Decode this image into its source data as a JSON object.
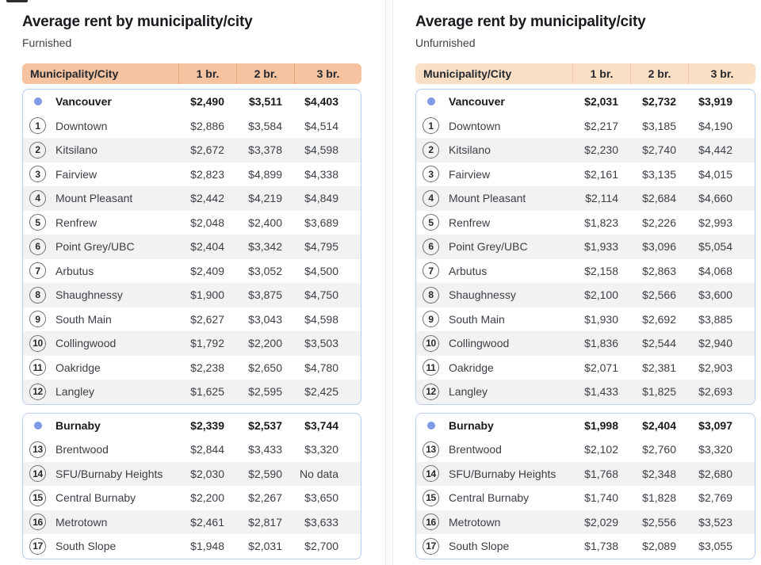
{
  "chart_data": [
    {
      "type": "table",
      "title": "Average rent by municipality/city",
      "subtitle": "Furnished",
      "columns": [
        "Municipality/City",
        "1 br.",
        "2 br.",
        "3 br."
      ],
      "sections": [
        {
          "city": {
            "name": "Vancouver",
            "values": [
              "$2,490",
              "$3,511",
              "$4,403"
            ]
          },
          "rows": [
            {
              "num": "1",
              "name": "Downtown",
              "values": [
                "$2,886",
                "$3,584",
                "$4,514"
              ]
            },
            {
              "num": "2",
              "name": "Kitsilano",
              "values": [
                "$2,672",
                "$3,378",
                "$4,598"
              ]
            },
            {
              "num": "3",
              "name": "Fairview",
              "values": [
                "$2,823",
                "$4,899",
                "$4,338"
              ]
            },
            {
              "num": "4",
              "name": "Mount Pleasant",
              "values": [
                "$2,442",
                "$4,219",
                "$4,849"
              ]
            },
            {
              "num": "5",
              "name": "Renfrew",
              "values": [
                "$2,048",
                "$2,400",
                "$3,689"
              ]
            },
            {
              "num": "6",
              "name": "Point Grey/UBC",
              "values": [
                "$2,404",
                "$3,342",
                "$4,795"
              ]
            },
            {
              "num": "7",
              "name": "Arbutus",
              "values": [
                "$2,409",
                "$3,052",
                "$4,500"
              ]
            },
            {
              "num": "8",
              "name": "Shaughnessy",
              "values": [
                "$1,900",
                "$3,875",
                "$4,750"
              ]
            },
            {
              "num": "9",
              "name": "South Main",
              "values": [
                "$2,627",
                "$3,043",
                "$4,598"
              ]
            },
            {
              "num": "10",
              "name": "Collingwood",
              "values": [
                "$1,792",
                "$2,200",
                "$3,503"
              ]
            },
            {
              "num": "11",
              "name": "Oakridge",
              "values": [
                "$2,238",
                "$2,650",
                "$4,780"
              ]
            },
            {
              "num": "12",
              "name": "Langley",
              "values": [
                "$1,625",
                "$2,595",
                "$2,425"
              ]
            }
          ]
        },
        {
          "city": {
            "name": "Burnaby",
            "values": [
              "$2,339",
              "$2,537",
              "$3,744"
            ]
          },
          "rows": [
            {
              "num": "13",
              "name": "Brentwood",
              "values": [
                "$2,844",
                "$3,433",
                "$3,320"
              ]
            },
            {
              "num": "14",
              "name": "SFU/Burnaby Heights",
              "values": [
                "$2,030",
                "$2,590",
                "No data"
              ]
            },
            {
              "num": "15",
              "name": "Central Burnaby",
              "values": [
                "$2,200",
                "$2,267",
                "$3,650"
              ]
            },
            {
              "num": "16",
              "name": "Metrotown",
              "values": [
                "$2,461",
                "$2,817",
                "$3,633"
              ]
            },
            {
              "num": "17",
              "name": "South Slope",
              "values": [
                "$1,948",
                "$2,031",
                "$2,700"
              ]
            }
          ]
        }
      ]
    },
    {
      "type": "table",
      "title": "Average rent by municipality/city",
      "subtitle": "Unfurnished",
      "columns": [
        "Municipality/City",
        "1 br.",
        "2 br.",
        "3 br."
      ],
      "sections": [
        {
          "city": {
            "name": "Vancouver",
            "values": [
              "$2,031",
              "$2,732",
              "$3,919"
            ]
          },
          "rows": [
            {
              "num": "1",
              "name": "Downtown",
              "values": [
                "$2,217",
                "$3,185",
                "$4,190"
              ]
            },
            {
              "num": "2",
              "name": "Kitsilano",
              "values": [
                "$2,230",
                "$2,740",
                "$4,442"
              ]
            },
            {
              "num": "3",
              "name": "Fairview",
              "values": [
                "$2,161",
                "$3,135",
                "$4,015"
              ]
            },
            {
              "num": "4",
              "name": "Mount Pleasant",
              "values": [
                "$2,114",
                "$2,684",
                "$4,660"
              ]
            },
            {
              "num": "5",
              "name": "Renfrew",
              "values": [
                "$1,823",
                "$2,226",
                "$2,993"
              ]
            },
            {
              "num": "6",
              "name": "Point Grey/UBC",
              "values": [
                "$1,933",
                "$3,096",
                "$5,054"
              ]
            },
            {
              "num": "7",
              "name": "Arbutus",
              "values": [
                "$2,158",
                "$2,863",
                "$4,068"
              ]
            },
            {
              "num": "8",
              "name": "Shaughnessy",
              "values": [
                "$2,100",
                "$2,566",
                "$3,600"
              ]
            },
            {
              "num": "9",
              "name": "South Main",
              "values": [
                "$1,930",
                "$2,692",
                "$3,885"
              ]
            },
            {
              "num": "10",
              "name": "Collingwood",
              "values": [
                "$1,836",
                "$2,544",
                "$2,940"
              ]
            },
            {
              "num": "11",
              "name": "Oakridge",
              "values": [
                "$2,071",
                "$2,381",
                "$2,903"
              ]
            },
            {
              "num": "12",
              "name": "Langley",
              "values": [
                "$1,433",
                "$1,825",
                "$2,693"
              ]
            }
          ]
        },
        {
          "city": {
            "name": "Burnaby",
            "values": [
              "$1,998",
              "$2,404",
              "$3,097"
            ]
          },
          "rows": [
            {
              "num": "13",
              "name": "Brentwood",
              "values": [
                "$2,102",
                "$2,760",
                "$3,320"
              ]
            },
            {
              "num": "14",
              "name": "SFU/Burnaby Heights",
              "values": [
                "$1,768",
                "$2,348",
                "$2,680"
              ]
            },
            {
              "num": "15",
              "name": "Central Burnaby",
              "values": [
                "$1,740",
                "$1,828",
                "$2,769"
              ]
            },
            {
              "num": "16",
              "name": "Metrotown",
              "values": [
                "$2,029",
                "$2,556",
                "$3,523"
              ]
            },
            {
              "num": "17",
              "name": "South Slope",
              "values": [
                "$1,738",
                "$2,089",
                "$3,055"
              ]
            }
          ]
        }
      ]
    }
  ],
  "colors": {
    "header_bg_furnished": "#f5c3a0",
    "header_sep_furnished": "#e2a87e",
    "header_bg_unfurnished": "#fbdfc5",
    "header_sep_unfurnished": "#f1c9a3",
    "box_border": "#b9cdf2",
    "row_stripe": "#f2f2f2",
    "city_marker_dot": "#7d99ea"
  },
  "icons": {
    "city_marker": "filled-circle",
    "rank_badge": "outlined-number-circle"
  }
}
